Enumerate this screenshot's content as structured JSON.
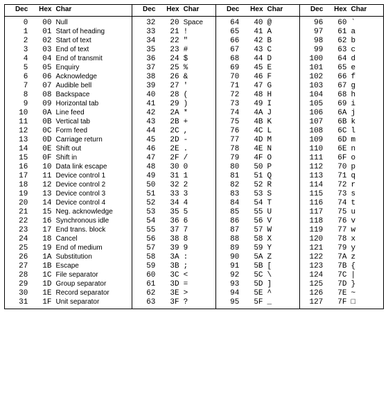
{
  "headers": {
    "dec": "Dec",
    "hex": "Hex",
    "char": "Char"
  },
  "groups": [
    {
      "mono": false,
      "rows": [
        {
          "dec": 0,
          "hex": "00",
          "char": "Null"
        },
        {
          "dec": 1,
          "hex": "01",
          "char": "Start of heading"
        },
        {
          "dec": 2,
          "hex": "02",
          "char": "Start of text"
        },
        {
          "dec": 3,
          "hex": "03",
          "char": "End of text"
        },
        {
          "dec": 4,
          "hex": "04",
          "char": "End of transmit"
        },
        {
          "dec": 5,
          "hex": "05",
          "char": "Enquiry"
        },
        {
          "dec": 6,
          "hex": "06",
          "char": "Acknowledge"
        },
        {
          "dec": 7,
          "hex": "07",
          "char": "Audible bell"
        },
        {
          "dec": 8,
          "hex": "08",
          "char": "Backspace"
        },
        {
          "dec": 9,
          "hex": "09",
          "char": "Horizontal tab"
        },
        {
          "dec": 10,
          "hex": "0A",
          "char": "Line feed"
        },
        {
          "dec": 11,
          "hex": "0B",
          "char": "Vertical tab"
        },
        {
          "dec": 12,
          "hex": "0C",
          "char": "Form feed"
        },
        {
          "dec": 13,
          "hex": "0D",
          "char": "Carriage return"
        },
        {
          "dec": 14,
          "hex": "0E",
          "char": "Shift out"
        },
        {
          "dec": 15,
          "hex": "0F",
          "char": "Shift in"
        },
        {
          "dec": 16,
          "hex": "10",
          "char": "Data link escape"
        },
        {
          "dec": 17,
          "hex": "11",
          "char": "Device control 1"
        },
        {
          "dec": 18,
          "hex": "12",
          "char": "Device control 2"
        },
        {
          "dec": 19,
          "hex": "13",
          "char": "Device control 3"
        },
        {
          "dec": 20,
          "hex": "14",
          "char": "Device control 4"
        },
        {
          "dec": 21,
          "hex": "15",
          "char": "Neg. acknowledge"
        },
        {
          "dec": 22,
          "hex": "16",
          "char": "Synchronous idle"
        },
        {
          "dec": 23,
          "hex": "17",
          "char": "End trans. block"
        },
        {
          "dec": 24,
          "hex": "18",
          "char": "Cancel"
        },
        {
          "dec": 25,
          "hex": "19",
          "char": "End of medium"
        },
        {
          "dec": 26,
          "hex": "1A",
          "char": "Substitution"
        },
        {
          "dec": 27,
          "hex": "1B",
          "char": "Escape"
        },
        {
          "dec": 28,
          "hex": "1C",
          "char": "File separator"
        },
        {
          "dec": 29,
          "hex": "1D",
          "char": "Group separator"
        },
        {
          "dec": 30,
          "hex": "1E",
          "char": "Record separator"
        },
        {
          "dec": 31,
          "hex": "1F",
          "char": "Unit separator"
        }
      ]
    },
    {
      "mono": true,
      "rows": [
        {
          "dec": 32,
          "hex": "20",
          "char": "Space",
          "mono": false
        },
        {
          "dec": 33,
          "hex": "21",
          "char": "!"
        },
        {
          "dec": 34,
          "hex": "22",
          "char": "\""
        },
        {
          "dec": 35,
          "hex": "23",
          "char": "#"
        },
        {
          "dec": 36,
          "hex": "24",
          "char": "$"
        },
        {
          "dec": 37,
          "hex": "25",
          "char": "%"
        },
        {
          "dec": 38,
          "hex": "26",
          "char": "&"
        },
        {
          "dec": 39,
          "hex": "27",
          "char": "'"
        },
        {
          "dec": 40,
          "hex": "28",
          "char": "("
        },
        {
          "dec": 41,
          "hex": "29",
          "char": ")"
        },
        {
          "dec": 42,
          "hex": "2A",
          "char": "*"
        },
        {
          "dec": 43,
          "hex": "2B",
          "char": "+"
        },
        {
          "dec": 44,
          "hex": "2C",
          "char": ","
        },
        {
          "dec": 45,
          "hex": "2D",
          "char": "-"
        },
        {
          "dec": 46,
          "hex": "2E",
          "char": "."
        },
        {
          "dec": 47,
          "hex": "2F",
          "char": "/"
        },
        {
          "dec": 48,
          "hex": "30",
          "char": "0"
        },
        {
          "dec": 49,
          "hex": "31",
          "char": "1"
        },
        {
          "dec": 50,
          "hex": "32",
          "char": "2"
        },
        {
          "dec": 51,
          "hex": "33",
          "char": "3"
        },
        {
          "dec": 52,
          "hex": "34",
          "char": "4"
        },
        {
          "dec": 53,
          "hex": "35",
          "char": "5"
        },
        {
          "dec": 54,
          "hex": "36",
          "char": "6"
        },
        {
          "dec": 55,
          "hex": "37",
          "char": "7"
        },
        {
          "dec": 56,
          "hex": "38",
          "char": "8"
        },
        {
          "dec": 57,
          "hex": "39",
          "char": "9"
        },
        {
          "dec": 58,
          "hex": "3A",
          "char": ":"
        },
        {
          "dec": 59,
          "hex": "3B",
          "char": ";"
        },
        {
          "dec": 60,
          "hex": "3C",
          "char": "<"
        },
        {
          "dec": 61,
          "hex": "3D",
          "char": "="
        },
        {
          "dec": 62,
          "hex": "3E",
          "char": ">"
        },
        {
          "dec": 63,
          "hex": "3F",
          "char": "?"
        }
      ]
    },
    {
      "mono": true,
      "rows": [
        {
          "dec": 64,
          "hex": "40",
          "char": "@"
        },
        {
          "dec": 65,
          "hex": "41",
          "char": "A"
        },
        {
          "dec": 66,
          "hex": "42",
          "char": "B"
        },
        {
          "dec": 67,
          "hex": "43",
          "char": "C"
        },
        {
          "dec": 68,
          "hex": "44",
          "char": "D"
        },
        {
          "dec": 69,
          "hex": "45",
          "char": "E"
        },
        {
          "dec": 70,
          "hex": "46",
          "char": "F"
        },
        {
          "dec": 71,
          "hex": "47",
          "char": "G"
        },
        {
          "dec": 72,
          "hex": "48",
          "char": "H"
        },
        {
          "dec": 73,
          "hex": "49",
          "char": "I"
        },
        {
          "dec": 74,
          "hex": "4A",
          "char": "J"
        },
        {
          "dec": 75,
          "hex": "4B",
          "char": "K"
        },
        {
          "dec": 76,
          "hex": "4C",
          "char": "L"
        },
        {
          "dec": 77,
          "hex": "4D",
          "char": "M"
        },
        {
          "dec": 78,
          "hex": "4E",
          "char": "N"
        },
        {
          "dec": 79,
          "hex": "4F",
          "char": "O"
        },
        {
          "dec": 80,
          "hex": "50",
          "char": "P"
        },
        {
          "dec": 81,
          "hex": "51",
          "char": "Q"
        },
        {
          "dec": 82,
          "hex": "52",
          "char": "R"
        },
        {
          "dec": 83,
          "hex": "53",
          "char": "S"
        },
        {
          "dec": 84,
          "hex": "54",
          "char": "T"
        },
        {
          "dec": 85,
          "hex": "55",
          "char": "U"
        },
        {
          "dec": 86,
          "hex": "56",
          "char": "V"
        },
        {
          "dec": 87,
          "hex": "57",
          "char": "W"
        },
        {
          "dec": 88,
          "hex": "58",
          "char": "X"
        },
        {
          "dec": 89,
          "hex": "59",
          "char": "Y"
        },
        {
          "dec": 90,
          "hex": "5A",
          "char": "Z"
        },
        {
          "dec": 91,
          "hex": "5B",
          "char": "["
        },
        {
          "dec": 92,
          "hex": "5C",
          "char": "\\"
        },
        {
          "dec": 93,
          "hex": "5D",
          "char": "]"
        },
        {
          "dec": 94,
          "hex": "5E",
          "char": "^"
        },
        {
          "dec": 95,
          "hex": "5F",
          "char": "_"
        }
      ]
    },
    {
      "mono": true,
      "rows": [
        {
          "dec": 96,
          "hex": "60",
          "char": "`"
        },
        {
          "dec": 97,
          "hex": "61",
          "char": "a"
        },
        {
          "dec": 98,
          "hex": "62",
          "char": "b"
        },
        {
          "dec": 99,
          "hex": "63",
          "char": "c"
        },
        {
          "dec": 100,
          "hex": "64",
          "char": "d"
        },
        {
          "dec": 101,
          "hex": "65",
          "char": "e"
        },
        {
          "dec": 102,
          "hex": "66",
          "char": "f"
        },
        {
          "dec": 103,
          "hex": "67",
          "char": "g"
        },
        {
          "dec": 104,
          "hex": "68",
          "char": "h"
        },
        {
          "dec": 105,
          "hex": "69",
          "char": "i"
        },
        {
          "dec": 106,
          "hex": "6A",
          "char": "j"
        },
        {
          "dec": 107,
          "hex": "6B",
          "char": "k"
        },
        {
          "dec": 108,
          "hex": "6C",
          "char": "l"
        },
        {
          "dec": 109,
          "hex": "6D",
          "char": "m"
        },
        {
          "dec": 110,
          "hex": "6E",
          "char": "n"
        },
        {
          "dec": 111,
          "hex": "6F",
          "char": "o"
        },
        {
          "dec": 112,
          "hex": "70",
          "char": "p"
        },
        {
          "dec": 113,
          "hex": "71",
          "char": "q"
        },
        {
          "dec": 114,
          "hex": "72",
          "char": "r"
        },
        {
          "dec": 115,
          "hex": "73",
          "char": "s"
        },
        {
          "dec": 116,
          "hex": "74",
          "char": "t"
        },
        {
          "dec": 117,
          "hex": "75",
          "char": "u"
        },
        {
          "dec": 118,
          "hex": "76",
          "char": "v"
        },
        {
          "dec": 119,
          "hex": "77",
          "char": "w"
        },
        {
          "dec": 120,
          "hex": "78",
          "char": "x"
        },
        {
          "dec": 121,
          "hex": "79",
          "char": "y"
        },
        {
          "dec": 122,
          "hex": "7A",
          "char": "z"
        },
        {
          "dec": 123,
          "hex": "7B",
          "char": "{"
        },
        {
          "dec": 124,
          "hex": "7C",
          "char": "|"
        },
        {
          "dec": 125,
          "hex": "7D",
          "char": "}"
        },
        {
          "dec": 126,
          "hex": "7E",
          "char": "~"
        },
        {
          "dec": 127,
          "hex": "7F",
          "char": "□"
        }
      ]
    }
  ]
}
